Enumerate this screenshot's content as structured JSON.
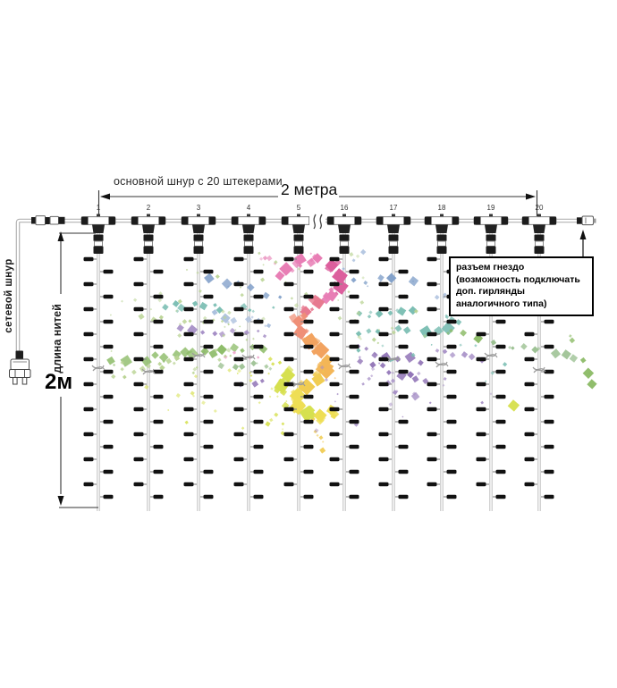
{
  "labels": {
    "main_cord": "основной шнур с 20 штекерами",
    "width_dim": "2 метра",
    "power_cord": "сетевой шнур",
    "threads_length": "длина нитей",
    "height_dim": "2м"
  },
  "connector_numbers": [
    "1",
    "2",
    "3",
    "4",
    "5",
    "16",
    "17",
    "18",
    "19",
    "20"
  ],
  "infobox": {
    "lines": [
      "разъем гнездо",
      "(возможность подключать",
      "доп. гирлянды",
      "аналогичного типа)"
    ]
  },
  "decoration": {
    "palette": {
      "pink": "#e87eb5",
      "magenta": "#dc5f9d",
      "rose": "#e77a90",
      "salmon": "#ef8f77",
      "orange": "#f2a360",
      "amber": "#f3b657",
      "gold": "#f0cc52",
      "yellow": "#eede55",
      "yellowGreen": "#d6e04f",
      "green": "#8cbb67",
      "paleGreen": "#b9d393",
      "sage": "#99bf8f",
      "teal": "#79bdb2",
      "blue": "#7f9ec8",
      "paleBlue": "#a9bedd",
      "lavender": "#a68fc6",
      "purple": "#8f72b5",
      "pinkLight": "#eda3c9"
    }
  },
  "colors": {
    "wire": "#b3b3b3",
    "hardware": "#1c1c1c",
    "dimension": "#333333"
  }
}
